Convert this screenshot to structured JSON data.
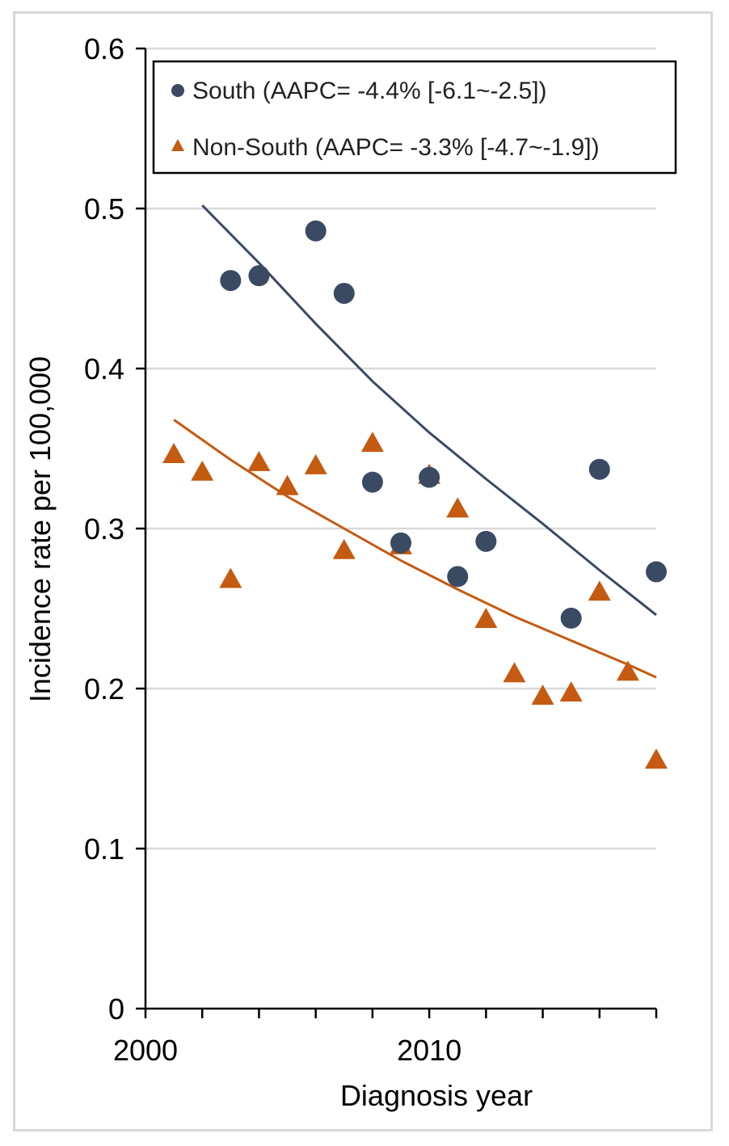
{
  "chart_data": {
    "type": "scatter",
    "xlabel": "Diagnosis year",
    "ylabel": "Incidence rate per 100,000",
    "xlim": [
      2000,
      2018
    ],
    "ylim": [
      0,
      0.6
    ],
    "x_ticks": [
      2000,
      2002,
      2004,
      2006,
      2008,
      2010,
      2012,
      2014,
      2016,
      2018
    ],
    "x_tick_labels": [
      {
        "value": 2000,
        "label": "2000"
      },
      {
        "value": 2010,
        "label": "2010"
      }
    ],
    "y_ticks": [
      {
        "value": 0,
        "label": "0"
      },
      {
        "value": 0.1,
        "label": "0.1"
      },
      {
        "value": 0.2,
        "label": "0.2"
      },
      {
        "value": 0.3,
        "label": "0.3"
      },
      {
        "value": 0.4,
        "label": "0.4"
      },
      {
        "value": 0.5,
        "label": "0.5"
      },
      {
        "value": 0.6,
        "label": "0.6"
      }
    ],
    "grid": "horizontal",
    "legend_position": "top",
    "series": [
      {
        "name": "South (AAPC= -4.4% [-6.1~-2.5])",
        "marker": "circle",
        "color": "#3b4a63",
        "x": [
          2003,
          2004,
          2006,
          2007,
          2008,
          2009,
          2010,
          2011,
          2012,
          2015,
          2016,
          2018
        ],
        "y": [
          0.455,
          0.458,
          0.486,
          0.447,
          0.329,
          0.291,
          0.332,
          0.27,
          0.292,
          0.244,
          0.337,
          0.273
        ],
        "trend": {
          "x": [
            2002,
            2004,
            2006,
            2008,
            2010,
            2012,
            2014,
            2016,
            2018
          ],
          "y": [
            0.502,
            0.466,
            0.428,
            0.392,
            0.36,
            0.331,
            0.303,
            0.274,
            0.246
          ]
        }
      },
      {
        "name": "Non-South (AAPC= -3.3% [-4.7~-1.9])",
        "marker": "triangle",
        "color": "#c55a11",
        "x": [
          2001,
          2002,
          2003,
          2004,
          2005,
          2006,
          2007,
          2008,
          2009,
          2010,
          2011,
          2012,
          2013,
          2014,
          2015,
          2016,
          2017,
          2018
        ],
        "y": [
          0.346,
          0.335,
          0.268,
          0.341,
          0.326,
          0.339,
          0.286,
          0.353,
          0.289,
          0.333,
          0.312,
          0.243,
          0.209,
          0.195,
          0.197,
          0.26,
          0.21,
          0.155
        ],
        "trend": {
          "x": [
            2001,
            2003,
            2005,
            2007,
            2009,
            2011,
            2013,
            2015,
            2017,
            2018
          ],
          "y": [
            0.368,
            0.343,
            0.32,
            0.3,
            0.28,
            0.262,
            0.245,
            0.23,
            0.215,
            0.207
          ]
        }
      }
    ]
  }
}
